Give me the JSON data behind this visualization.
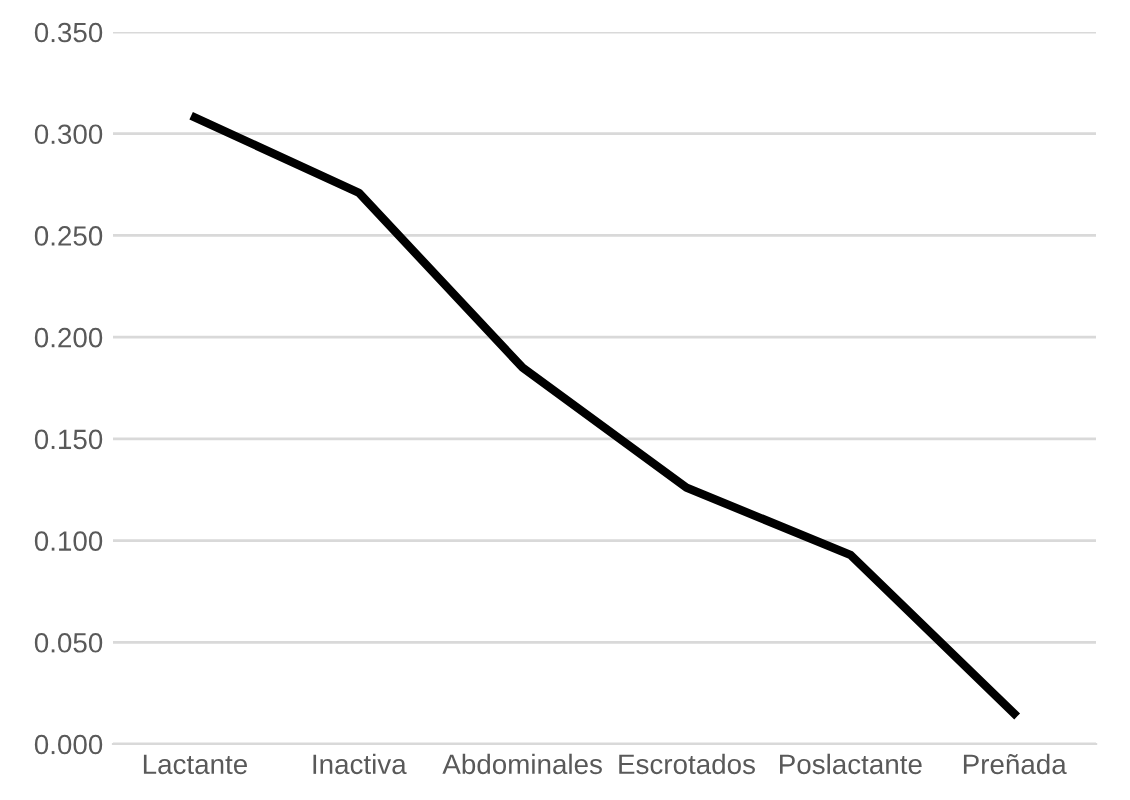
{
  "chart_data": {
    "type": "line",
    "categories": [
      "Lactante",
      "Inactiva",
      "Abdominales",
      "Escrotados",
      "Poslactante",
      "Preñada"
    ],
    "series": [
      {
        "color": "#000000",
        "values": [
          0.308,
          0.271,
          0.185,
          0.126,
          0.093,
          0.015
        ]
      }
    ],
    "ylim": [
      0,
      0.35
    ],
    "yticks": [
      {
        "value": 0,
        "label": "0.000"
      },
      {
        "value": 0.05,
        "label": "0.050"
      },
      {
        "value": 0.1,
        "label": "0.100"
      },
      {
        "value": 0.15,
        "label": "0.150"
      },
      {
        "value": 0.2,
        "label": "0.200"
      },
      {
        "value": 0.25,
        "label": "0.250"
      },
      {
        "value": 0.3,
        "label": "0.300"
      },
      {
        "value": 0.35,
        "label": "0.350"
      }
    ],
    "grid": "y",
    "marker": "none",
    "line_style": "solid"
  }
}
